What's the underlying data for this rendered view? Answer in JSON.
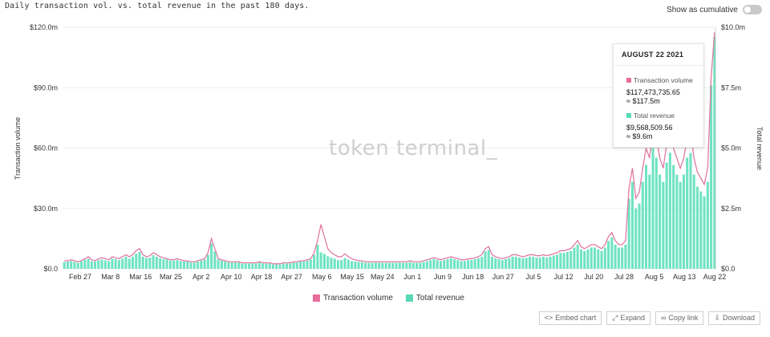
{
  "header": {
    "subtitle": "Daily transaction vol. vs. total revenue in the past 180 days.",
    "toggle_label": "Show as cumulative"
  },
  "watermark": "token terminal_",
  "tooltip": {
    "date": "AUGUST 22 2021",
    "tx_label": "Transaction volume",
    "tx_value": "$117,473,735.65",
    "tx_short": "≈ $117.5m",
    "rev_label": "Total revenue",
    "rev_value": "$9,568,509.56",
    "rev_short": "≈ $9.6m"
  },
  "legend": {
    "tx": "Transaction volume",
    "rev": "Total revenue"
  },
  "actions": {
    "embed": "Embed chart",
    "expand": "Expand",
    "copy": "Copy link",
    "download": "Download"
  },
  "colors": {
    "tx_line": "#e07aa0",
    "rev_bar": "#6fe3c2",
    "tx_legend": "#e86d9b",
    "rev_legend": "#57d9b6"
  },
  "chart_data": {
    "type": "bar",
    "x_tick_labels": [
      "Feb 27",
      "Mar 8",
      "Mar 16",
      "Mar 25",
      "Apr 2",
      "Apr 10",
      "Apr 18",
      "Apr 27",
      "May 6",
      "May 15",
      "May 24",
      "Jun 1",
      "Jun 9",
      "Jun 18",
      "Jun 27",
      "Jul 5",
      "Jul 12",
      "Jul 20",
      "Jul 28",
      "Aug 5",
      "Aug 13",
      "Aug 22"
    ],
    "y_left": {
      "label": "Transaction volume",
      "ticks": [
        "$0.0",
        "$30.0m",
        "$60.0m",
        "$90.0m",
        "$120.0m"
      ],
      "ylim": [
        0,
        120
      ]
    },
    "y_right": {
      "label": "Total revenue",
      "ticks": [
        "$0.0",
        "$2.5m",
        "$5.0m",
        "$7.5m",
        "$10.0m"
      ],
      "ylim": [
        0,
        10
      ]
    },
    "series": [
      {
        "name": "Transaction volume",
        "kind": "line",
        "unit": "$m",
        "values": [
          4,
          4,
          4.5,
          4,
          3.5,
          4,
          5,
          6,
          4.5,
          4,
          5,
          5.5,
          5,
          4.5,
          6,
          5.5,
          5,
          6,
          7,
          6,
          7,
          9,
          10,
          7,
          6,
          6.5,
          8,
          7,
          6,
          5.5,
          5,
          4.5,
          4.5,
          5,
          4.5,
          4,
          4,
          3.5,
          3.5,
          4,
          4.5,
          5,
          8,
          15,
          10,
          5,
          4.5,
          4,
          3.5,
          3.5,
          3.5,
          3.5,
          3,
          3,
          3,
          3,
          3,
          3.5,
          3,
          3,
          3,
          2.5,
          2.5,
          2.5,
          3,
          3,
          3,
          3.5,
          3.5,
          4,
          4,
          4.5,
          5,
          8,
          14,
          22,
          16,
          10,
          8,
          7,
          6,
          6,
          7.5,
          6,
          5,
          4.5,
          4,
          4,
          3.5,
          3.5,
          3.5,
          3.5,
          3.5,
          3.5,
          3.5,
          3.5,
          3.5,
          3.5,
          3.5,
          3.5,
          3.5,
          4,
          3.5,
          3.5,
          3.5,
          4,
          4.5,
          5,
          5.5,
          5,
          4.5,
          5,
          5.5,
          6,
          5.5,
          5,
          4.5,
          4.5,
          5,
          5,
          5.5,
          6,
          7,
          10,
          11,
          7,
          6,
          5.5,
          5,
          5.5,
          6,
          7,
          7,
          6.5,
          6,
          6.5,
          7,
          7,
          6.5,
          6.5,
          7,
          6.5,
          7,
          7.5,
          8,
          9,
          9,
          9.5,
          10,
          12,
          14,
          11,
          10,
          11,
          12,
          12,
          11,
          10,
          12,
          16,
          18,
          14,
          12,
          12,
          14,
          40,
          50,
          35,
          38,
          50,
          60,
          55,
          70,
          65,
          55,
          50,
          62,
          68,
          60,
          55,
          50,
          55,
          65,
          68,
          55,
          48,
          45,
          42,
          50,
          95,
          117.5
        ]
      },
      {
        "name": "Total revenue",
        "kind": "bar",
        "unit": "$m",
        "values": [
          0.28,
          0.3,
          0.32,
          0.28,
          0.25,
          0.3,
          0.38,
          0.42,
          0.32,
          0.3,
          0.36,
          0.38,
          0.35,
          0.32,
          0.42,
          0.4,
          0.36,
          0.42,
          0.5,
          0.42,
          0.5,
          0.62,
          0.7,
          0.5,
          0.45,
          0.46,
          0.56,
          0.5,
          0.44,
          0.4,
          0.38,
          0.34,
          0.34,
          0.36,
          0.32,
          0.3,
          0.3,
          0.26,
          0.26,
          0.3,
          0.34,
          0.38,
          0.58,
          1.05,
          0.72,
          0.38,
          0.34,
          0.3,
          0.26,
          0.26,
          0.26,
          0.26,
          0.22,
          0.22,
          0.22,
          0.22,
          0.22,
          0.26,
          0.22,
          0.22,
          0.22,
          0.18,
          0.18,
          0.18,
          0.22,
          0.22,
          0.22,
          0.26,
          0.26,
          0.3,
          0.3,
          0.34,
          0.38,
          0.58,
          1.0,
          0.68,
          0.62,
          0.52,
          0.46,
          0.42,
          0.36,
          0.36,
          0.44,
          0.38,
          0.32,
          0.3,
          0.28,
          0.28,
          0.25,
          0.25,
          0.25,
          0.25,
          0.25,
          0.25,
          0.25,
          0.25,
          0.25,
          0.25,
          0.25,
          0.25,
          0.25,
          0.28,
          0.25,
          0.25,
          0.25,
          0.28,
          0.32,
          0.36,
          0.4,
          0.36,
          0.32,
          0.36,
          0.4,
          0.44,
          0.4,
          0.36,
          0.32,
          0.32,
          0.36,
          0.36,
          0.4,
          0.44,
          0.5,
          0.72,
          0.78,
          0.5,
          0.44,
          0.4,
          0.36,
          0.4,
          0.44,
          0.5,
          0.5,
          0.46,
          0.44,
          0.46,
          0.5,
          0.5,
          0.46,
          0.46,
          0.5,
          0.46,
          0.5,
          0.55,
          0.58,
          0.66,
          0.66,
          0.7,
          0.74,
          0.88,
          1.0,
          0.8,
          0.74,
          0.8,
          0.88,
          0.88,
          0.8,
          0.74,
          0.88,
          1.15,
          1.3,
          1.0,
          0.88,
          0.88,
          1.0,
          2.9,
          3.6,
          2.5,
          2.7,
          3.6,
          4.3,
          3.9,
          5.0,
          4.6,
          3.9,
          3.6,
          4.4,
          4.8,
          4.3,
          3.9,
          3.6,
          3.9,
          4.6,
          4.8,
          3.9,
          3.4,
          3.2,
          3.0,
          3.6,
          7.6,
          9.6
        ]
      }
    ],
    "grid": "horizontal",
    "legend_position": "bottom-center"
  }
}
